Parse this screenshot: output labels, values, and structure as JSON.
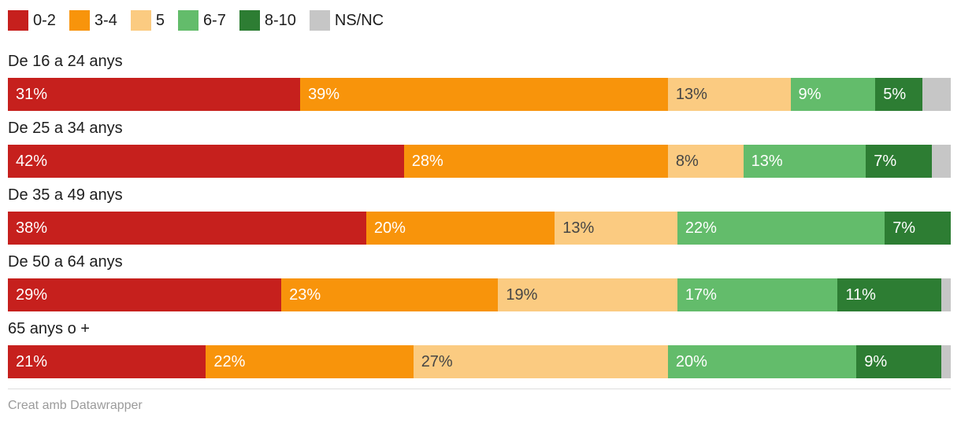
{
  "legend": {
    "items": [
      {
        "label": "0-2",
        "color": "#c6201d"
      },
      {
        "label": "3-4",
        "color": "#f8940b"
      },
      {
        "label": "5",
        "color": "#fbcb81"
      },
      {
        "label": "6-7",
        "color": "#63bc6b"
      },
      {
        "label": "8-10",
        "color": "#2d7d33"
      },
      {
        "label": "NS/NC",
        "color": "#c6c6c6"
      }
    ]
  },
  "chart_data": {
    "type": "bar",
    "variant": "horizontal-stacked-100",
    "categories": [
      "De 16 a 24 anys",
      "De 25 a 34 anys",
      "De 35 a 49 anys",
      "De 50 a 64 anys",
      "65 anys o +"
    ],
    "series": [
      {
        "name": "0-2",
        "color": "#c6201d",
        "label_color": "#ffffff",
        "show_label": true,
        "values": [
          31,
          42,
          38,
          29,
          21
        ]
      },
      {
        "name": "3-4",
        "color": "#f8940b",
        "label_color": "#ffffff",
        "show_label": true,
        "values": [
          39,
          28,
          20,
          23,
          22
        ]
      },
      {
        "name": "5",
        "color": "#fbcb81",
        "label_color": "#454545",
        "show_label": true,
        "values": [
          13,
          8,
          13,
          19,
          27
        ]
      },
      {
        "name": "6-7",
        "color": "#63bc6b",
        "label_color": "#ffffff",
        "show_label": true,
        "values": [
          9,
          13,
          22,
          17,
          20
        ]
      },
      {
        "name": "8-10",
        "color": "#2d7d33",
        "label_color": "#ffffff",
        "show_label": true,
        "values": [
          5,
          7,
          7,
          11,
          9
        ]
      },
      {
        "name": "NS/NC",
        "color": "#c6c6c6",
        "label_color": "#454545",
        "show_label": false,
        "values": [
          3,
          2,
          0,
          1,
          1
        ]
      }
    ],
    "value_suffix": "%",
    "xlim": [
      0,
      100
    ],
    "grid": false,
    "legend_position": "top"
  },
  "footer": {
    "text": "Creat amb Datawrapper"
  }
}
